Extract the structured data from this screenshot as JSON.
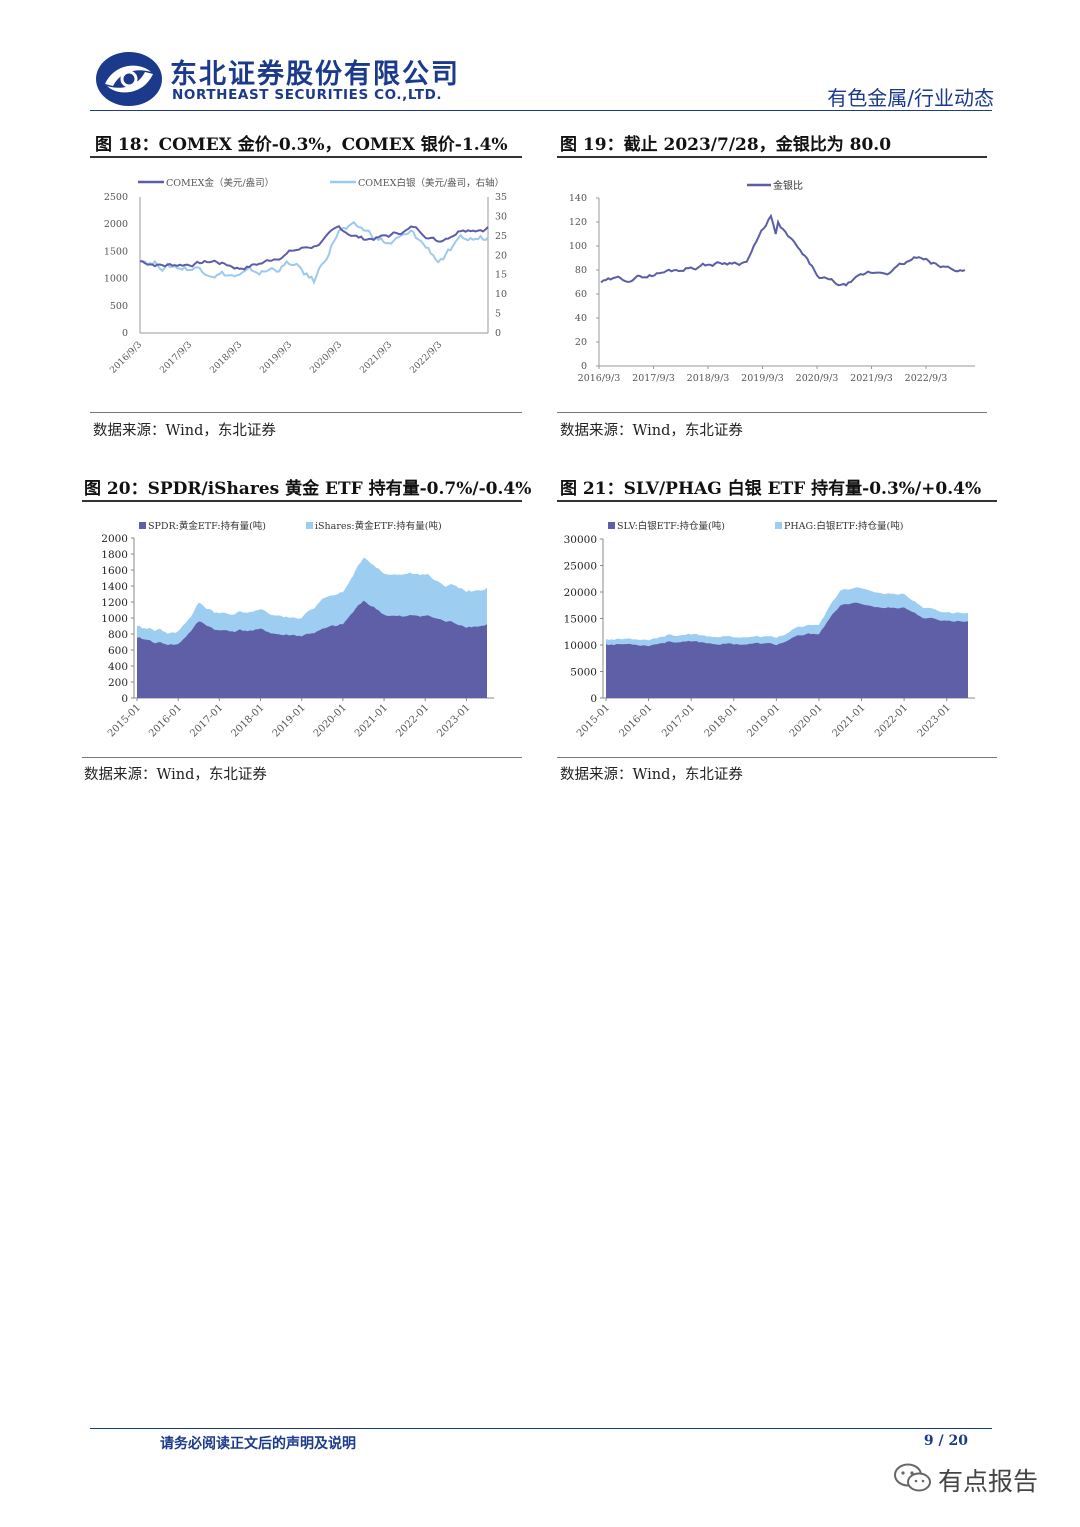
{
  "header": {
    "company_cn": "东北证券股份有限公司",
    "company_en": "NORTHEAST SECURITIES CO.,LTD.",
    "section": "有色金属/行业动态",
    "brand_color": "#1b3a8c"
  },
  "figures": [
    {
      "title": "图 18：COMEX 金价-0.3%，COMEX 银价-1.4%",
      "source": "数据来源：Wind，东北证券"
    },
    {
      "title": "图 19：截止 2023/7/28，金银比为 80.0",
      "source": "数据来源：Wind，东北证券"
    },
    {
      "title": "图 20：SPDR/iShares 黄金 ETF 持有量-0.7%/-0.4%",
      "source": "数据来源：Wind，东北证券"
    },
    {
      "title": "图 21：SLV/PHAG 白银 ETF 持有量-0.3%/+0.4%",
      "source": "数据来源：Wind，东北证券"
    }
  ],
  "chart_data": [
    {
      "type": "line",
      "title": "COMEX 金价 / COMEX 银价",
      "x": [
        "2016/9/3",
        "2017/3/3",
        "2017/9/3",
        "2018/3/3",
        "2018/9/3",
        "2019/3/3",
        "2019/9/3",
        "2020/3/3",
        "2020/9/3",
        "2021/3/3",
        "2021/9/3",
        "2022/3/3",
        "2022/9/3",
        "2023/3/3",
        "2023/7/28"
      ],
      "x_tick_labels": [
        "2016/9/3",
        "2017/9/3",
        "2018/9/3",
        "2019/9/3",
        "2020/9/3",
        "2021/9/3",
        "2022/9/3"
      ],
      "series": [
        {
          "name": "COMEX金（美元/盎司）",
          "axis": "left",
          "color": "#5b5ea6",
          "values": [
            1320,
            1250,
            1280,
            1320,
            1200,
            1300,
            1500,
            1600,
            1900,
            1730,
            1780,
            1940,
            1700,
            1950,
            1950
          ]
        },
        {
          "name": "COMEX白银（美元/盎司，右轴）",
          "axis": "right",
          "color": "#9dc9ec",
          "values": [
            19.5,
            17.5,
            17,
            16.5,
            14.5,
            15.5,
            18,
            13,
            27,
            26,
            23,
            25,
            19,
            23,
            24.5
          ]
        }
      ],
      "y_left_ticks": [
        "0",
        "500",
        "1000",
        "1500",
        "2000",
        "2500"
      ],
      "y_right_ticks": [
        "0",
        "5",
        "10",
        "15",
        "20",
        "25",
        "30",
        "35"
      ],
      "ylim_left": [
        0,
        2500
      ],
      "ylim_right": [
        0,
        35
      ]
    },
    {
      "type": "line",
      "title": "金银比",
      "x": [
        "2016/9/3",
        "2017/3/3",
        "2017/9/3",
        "2018/3/3",
        "2018/9/3",
        "2019/3/3",
        "2019/9/3",
        "2020/3/3",
        "2020/5/1",
        "2020/9/3",
        "2021/3/3",
        "2021/9/3",
        "2022/3/3",
        "2022/9/3",
        "2023/3/3",
        "2023/7/28"
      ],
      "x_tick_labels": [
        "2016/9/3",
        "2017/9/3",
        "2018/9/3",
        "2019/9/3",
        "2020/9/3",
        "2021/9/3",
        "2022/9/3"
      ],
      "series": [
        {
          "name": "金银比",
          "color": "#5b5ea6",
          "values": [
            70,
            72,
            76,
            80,
            84,
            86,
            88,
            125,
            100,
            73,
            66,
            76,
            80,
            90,
            82,
            80
          ]
        }
      ],
      "y_ticks": [
        "0",
        "20",
        "40",
        "60",
        "80",
        "100",
        "120",
        "140"
      ],
      "ylim": [
        0,
        140
      ]
    },
    {
      "type": "area",
      "title": "黄金ETF持有量",
      "x": [
        "2015-01",
        "2015-07",
        "2016-01",
        "2016-07",
        "2017-01",
        "2017-07",
        "2018-01",
        "2018-07",
        "2019-01",
        "2019-07",
        "2020-01",
        "2020-07",
        "2021-01",
        "2021-07",
        "2022-01",
        "2022-07",
        "2023-01",
        "2023-07"
      ],
      "x_tick_labels": [
        "2015-01",
        "2016-01",
        "2017-01",
        "2018-01",
        "2019-01",
        "2020-01",
        "2021-01",
        "2022-01",
        "2023-01"
      ],
      "series": [
        {
          "name": "SPDR:黄金ETF:持有量(吨)",
          "color": "#5f5fa8",
          "values": [
            740,
            690,
            670,
            950,
            840,
            850,
            840,
            790,
            780,
            850,
            900,
            1220,
            1050,
            1000,
            1040,
            950,
            910,
            920
          ]
        },
        {
          "name": "iShares:黄金ETF:持有量(吨)",
          "color": "#9dcdf0",
          "values": [
            160,
            150,
            160,
            230,
            220,
            230,
            240,
            220,
            240,
            360,
            400,
            520,
            510,
            510,
            500,
            460,
            460,
            460
          ]
        }
      ],
      "y_ticks": [
        "0",
        "200",
        "400",
        "600",
        "800",
        "1000",
        "1200",
        "1400",
        "1600",
        "1800",
        "2000"
      ],
      "ylim": [
        0,
        2000
      ]
    },
    {
      "type": "area",
      "title": "白银ETF持仓量",
      "x": [
        "2015-01",
        "2015-07",
        "2016-01",
        "2016-07",
        "2017-01",
        "2017-07",
        "2018-01",
        "2018-07",
        "2019-01",
        "2019-07",
        "2020-01",
        "2020-07",
        "2021-01",
        "2021-07",
        "2022-01",
        "2022-07",
        "2023-01",
        "2023-07"
      ],
      "x_tick_labels": [
        "2015-01",
        "2016-01",
        "2017-01",
        "2018-01",
        "2019-01",
        "2020-01",
        "2021-01",
        "2022-01",
        "2023-01"
      ],
      "series": [
        {
          "name": "SLV:白银ETF:持仓量(吨)",
          "color": "#5f5fa8",
          "values": [
            10200,
            10200,
            10100,
            10800,
            10500,
            10300,
            10200,
            10300,
            10000,
            11500,
            12200,
            17500,
            17800,
            17000,
            17200,
            15000,
            14600,
            14500
          ]
        },
        {
          "name": "PHAG:白银ETF:持仓量(吨)",
          "color": "#9dcdf0",
          "values": [
            1000,
            1000,
            1100,
            1200,
            1300,
            1300,
            1300,
            1300,
            1300,
            1500,
            1800,
            2800,
            3000,
            2600,
            2400,
            1900,
            1700,
            1600
          ]
        }
      ],
      "y_ticks": [
        "0",
        "5000",
        "10000",
        "15000",
        "20000",
        "25000",
        "30000"
      ],
      "ylim": [
        0,
        30000
      ]
    }
  ],
  "footer": {
    "disclaimer": "请务必阅读正文后的声明及说明",
    "page": "9 / 20",
    "watermark": "有点报告"
  }
}
